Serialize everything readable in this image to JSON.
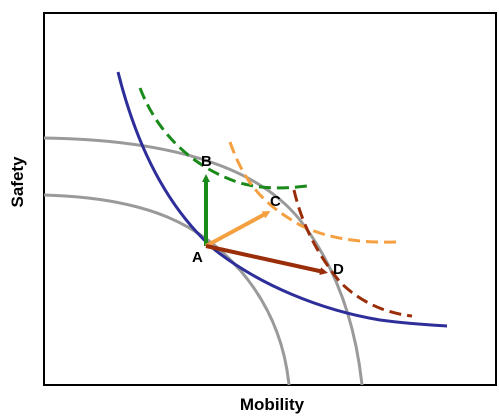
{
  "axes": {
    "x_label": "Mobility",
    "y_label": "Safety"
  },
  "points": {
    "a": "A",
    "b": "B",
    "c": "C",
    "d": "D"
  },
  "colors": {
    "frontier": "#9a9a9a",
    "indifference": "#2e2e9a",
    "green": "#1a8a1a",
    "orange": "#f4a040",
    "brown": "#9a2e0a"
  }
}
